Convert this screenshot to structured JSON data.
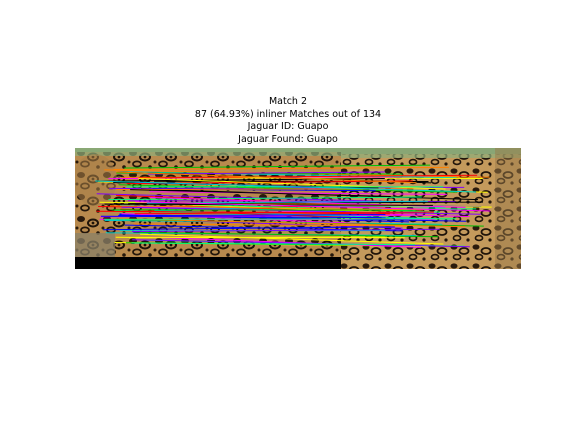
{
  "figure": {
    "title_lines": [
      "Match 2",
      "87 (64.93%) inliner Matches out of 134",
      "Jaguar ID: Guapo",
      "Jaguar Found: Guapo"
    ]
  },
  "match": {
    "inlier_count": 87,
    "total_count": 134,
    "inlier_percent": 64.93,
    "jaguar_id": "Guapo",
    "jaguar_found": "Guapo"
  },
  "colors": {
    "background": "#ffffff",
    "padding": "#000000",
    "match_lines": [
      "#ff0000",
      "#00c000",
      "#0000ff",
      "#ff00ff",
      "#00cccc",
      "#ffff00",
      "#ff8000",
      "#8000ff",
      "#000000",
      "#00ff80"
    ]
  },
  "icons": {
    "left_image": "jaguar-flank-photo",
    "right_image": "jaguar-flank-photo"
  }
}
